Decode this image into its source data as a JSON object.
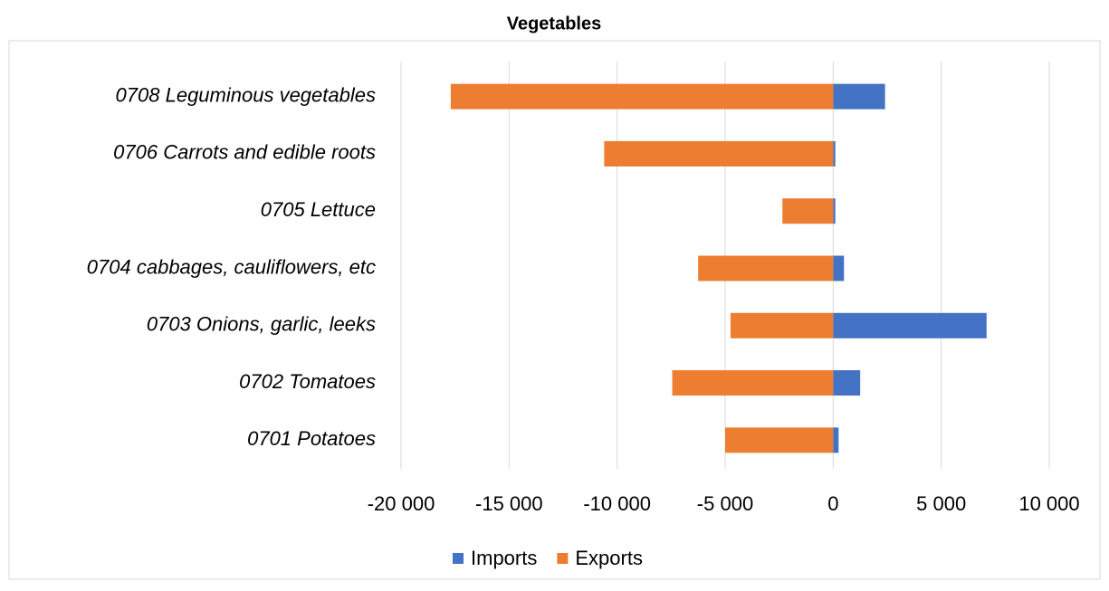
{
  "chart_data": {
    "type": "hbar",
    "title": "Vegetables",
    "categories": [
      "0708 Leguminous vegetables",
      "0706 Carrots and edible roots",
      "0705 Lettuce",
      "0704 cabbages, cauliflowers, etc",
      "0703 Onions, garlic, leeks",
      "0702 Tomatoes",
      "0701 Potatoes"
    ],
    "series": [
      {
        "name": "Imports",
        "color": "#4472c4",
        "values": [
          2400,
          100,
          100,
          500,
          7100,
          1250,
          250
        ]
      },
      {
        "name": "Exports",
        "color": "#ed7d31",
        "values": [
          -17700,
          -10600,
          -2350,
          -6250,
          -4750,
          -7450,
          -5000
        ]
      }
    ],
    "xlim": [
      -20000,
      10000
    ],
    "xticks": [
      {
        "value": -20000,
        "label": "-20 000"
      },
      {
        "value": -15000,
        "label": "-15 000"
      },
      {
        "value": -10000,
        "label": "-10 000"
      },
      {
        "value": -5000,
        "label": "-5 000"
      },
      0,
      {
        "value": 5000,
        "label": "5 000"
      },
      {
        "value": 10000,
        "label": "10 000"
      }
    ],
    "grid": true,
    "legend": "bottom"
  }
}
